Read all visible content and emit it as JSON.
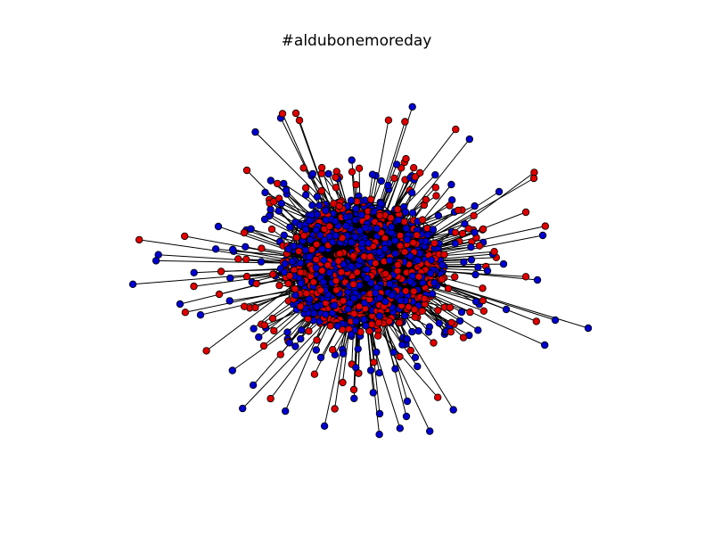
{
  "figure": {
    "title": "#aldubonemoreday"
  },
  "network": {
    "type": "force-directed network graph",
    "node_groups": [
      {
        "id": "red",
        "color": "#dd0000"
      },
      {
        "id": "blue",
        "color": "#0000cc"
      }
    ],
    "node_outline_color": "#000000",
    "edge_color": "#000000",
    "background_color": "#ffffff"
  }
}
